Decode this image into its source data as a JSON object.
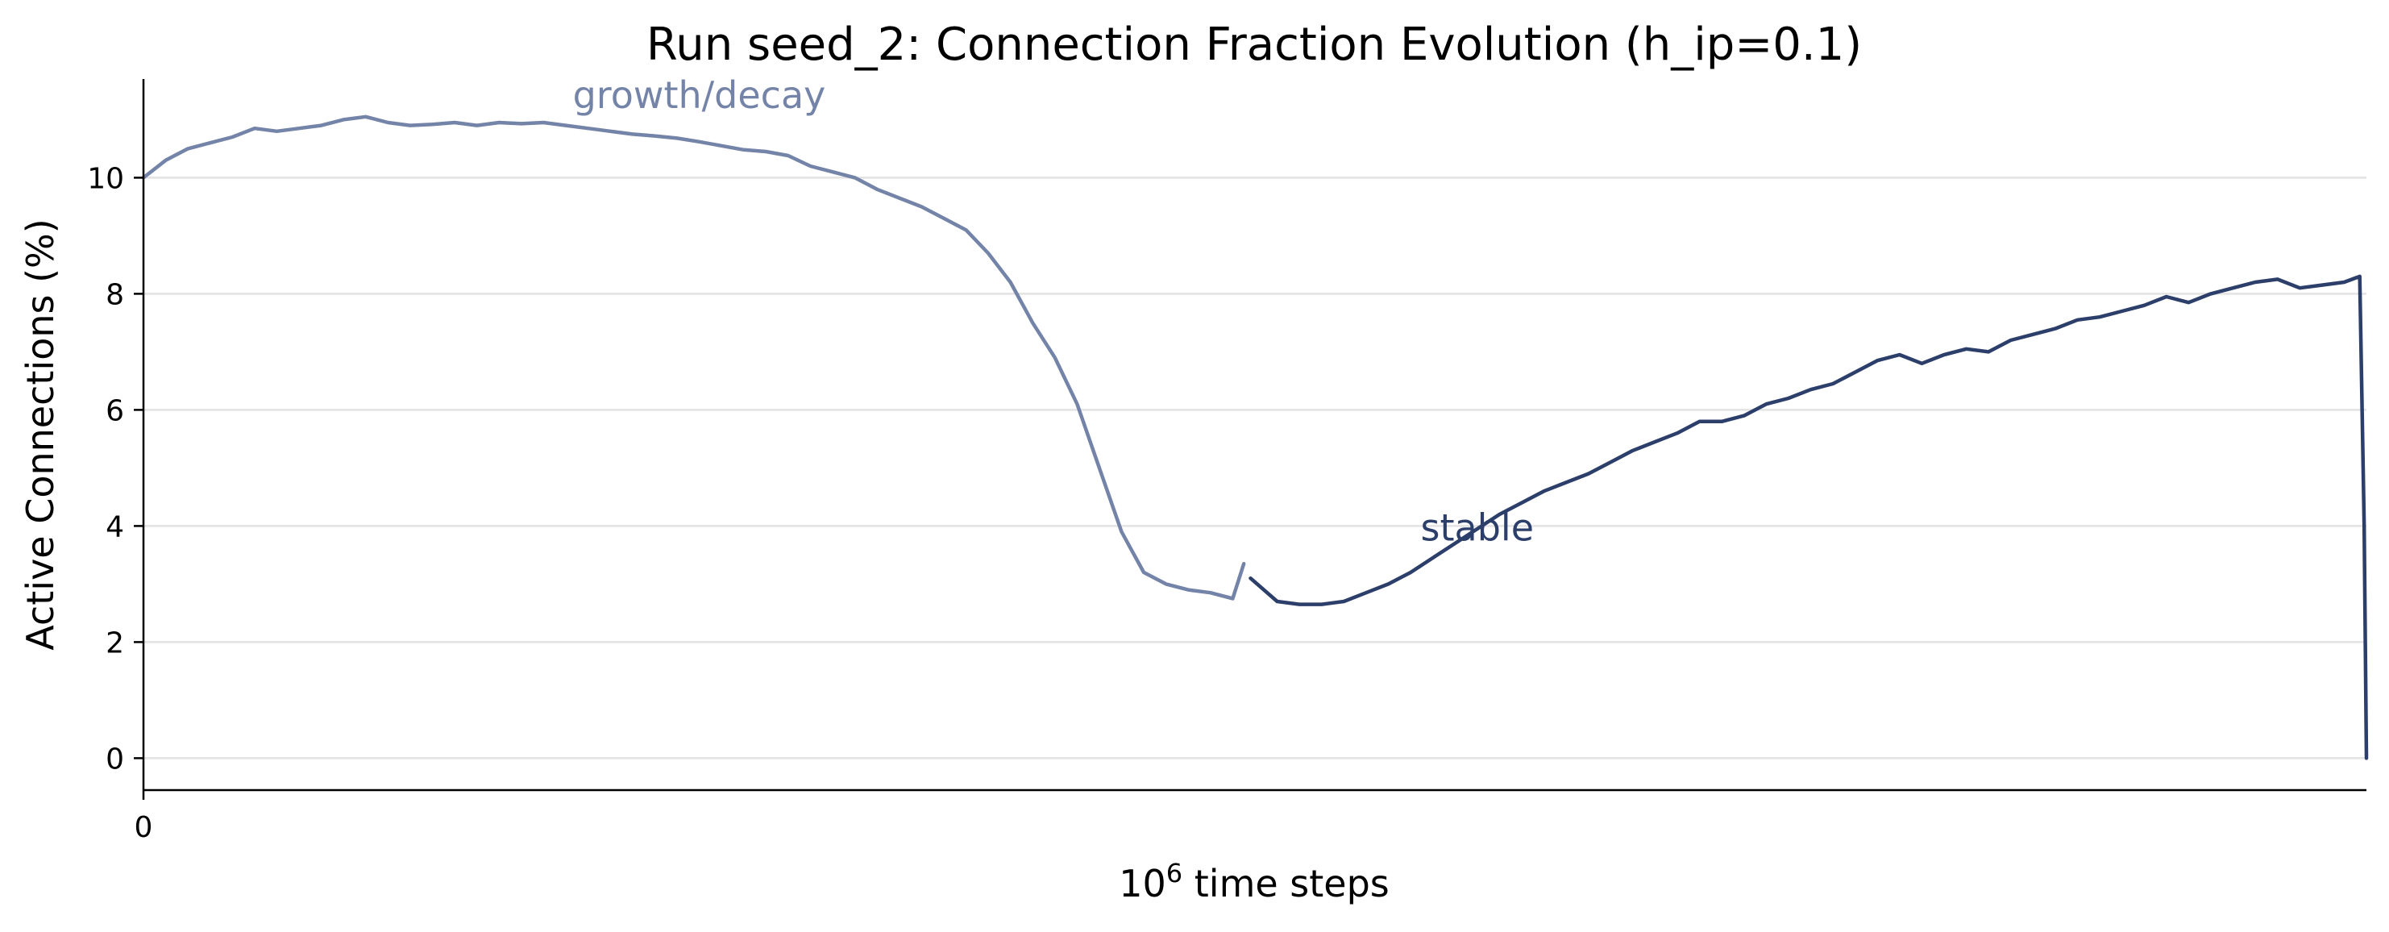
{
  "chart_data": {
    "type": "line",
    "title": "Run seed_2: Connection Fraction Evolution (h_ip=0.1)",
    "xlabel": "10",
    "xlabel_superscript": "6",
    "xlabel_suffix": " time steps",
    "ylabel": "Active Connections (%)",
    "ylim": [
      -0.55,
      11.7
    ],
    "xlim": [
      0,
      1
    ],
    "x_ticks": [
      {
        "value": 0,
        "label": "0"
      }
    ],
    "y_ticks": [
      {
        "value": 0,
        "label": "0"
      },
      {
        "value": 2,
        "label": "2"
      },
      {
        "value": 4,
        "label": "4"
      },
      {
        "value": 6,
        "label": "6"
      },
      {
        "value": 8,
        "label": "8"
      },
      {
        "value": 10,
        "label": "10"
      }
    ],
    "grid": "horizontal",
    "colors": {
      "growth": "#7484a8",
      "stable": "#2c3e6a",
      "grid": "#e3e3e3",
      "axis": "#000000"
    },
    "annotations": [
      {
        "text": "growth/decay",
        "x": 0.25,
        "y": 11.2,
        "series": "growth"
      },
      {
        "text": "stable",
        "x": 0.6,
        "y": 3.75,
        "series": "stable"
      }
    ],
    "series": [
      {
        "key": "growth",
        "x": [
          0.0,
          0.01,
          0.02,
          0.03,
          0.04,
          0.05,
          0.06,
          0.07,
          0.08,
          0.09,
          0.1,
          0.11,
          0.12,
          0.13,
          0.14,
          0.15,
          0.16,
          0.17,
          0.18,
          0.19,
          0.2,
          0.21,
          0.22,
          0.23,
          0.24,
          0.25,
          0.26,
          0.27,
          0.28,
          0.29,
          0.3,
          0.31,
          0.32,
          0.33,
          0.34,
          0.35,
          0.36,
          0.37,
          0.38,
          0.39,
          0.4,
          0.41,
          0.42,
          0.43,
          0.44,
          0.45,
          0.46,
          0.47,
          0.48,
          0.49,
          0.495
        ],
        "y": [
          10.0,
          10.3,
          10.5,
          10.6,
          10.7,
          10.85,
          10.8,
          10.85,
          10.9,
          11.0,
          11.05,
          10.95,
          10.9,
          10.92,
          10.95,
          10.9,
          10.95,
          10.93,
          10.95,
          10.9,
          10.85,
          10.8,
          10.75,
          10.72,
          10.68,
          10.62,
          10.55,
          10.48,
          10.45,
          10.38,
          10.2,
          10.1,
          10.0,
          9.8,
          9.65,
          9.5,
          9.3,
          9.1,
          8.7,
          8.2,
          7.5,
          6.9,
          6.1,
          5.0,
          3.9,
          3.2,
          3.0,
          2.9,
          2.85,
          2.75,
          3.35
        ]
      },
      {
        "key": "stable",
        "x": [
          0.498,
          0.51,
          0.52,
          0.53,
          0.54,
          0.55,
          0.56,
          0.57,
          0.58,
          0.59,
          0.6,
          0.61,
          0.62,
          0.63,
          0.64,
          0.65,
          0.66,
          0.67,
          0.68,
          0.69,
          0.7,
          0.71,
          0.72,
          0.73,
          0.74,
          0.75,
          0.76,
          0.77,
          0.78,
          0.79,
          0.8,
          0.81,
          0.82,
          0.83,
          0.84,
          0.85,
          0.86,
          0.87,
          0.88,
          0.89,
          0.9,
          0.91,
          0.92,
          0.93,
          0.94,
          0.95,
          0.96,
          0.97,
          0.98,
          0.99,
          0.997,
          0.999,
          1.0
        ],
        "y": [
          3.1,
          2.7,
          2.65,
          2.65,
          2.7,
          2.85,
          3.0,
          3.2,
          3.45,
          3.7,
          3.95,
          4.2,
          4.4,
          4.6,
          4.75,
          4.9,
          5.1,
          5.3,
          5.45,
          5.6,
          5.8,
          5.8,
          5.9,
          6.1,
          6.2,
          6.35,
          6.45,
          6.65,
          6.85,
          6.95,
          6.8,
          6.95,
          7.05,
          7.0,
          7.2,
          7.3,
          7.4,
          7.55,
          7.6,
          7.7,
          7.8,
          7.95,
          7.85,
          8.0,
          8.1,
          8.2,
          8.25,
          8.1,
          8.15,
          8.2,
          8.3,
          4.0,
          0.0
        ]
      }
    ]
  }
}
